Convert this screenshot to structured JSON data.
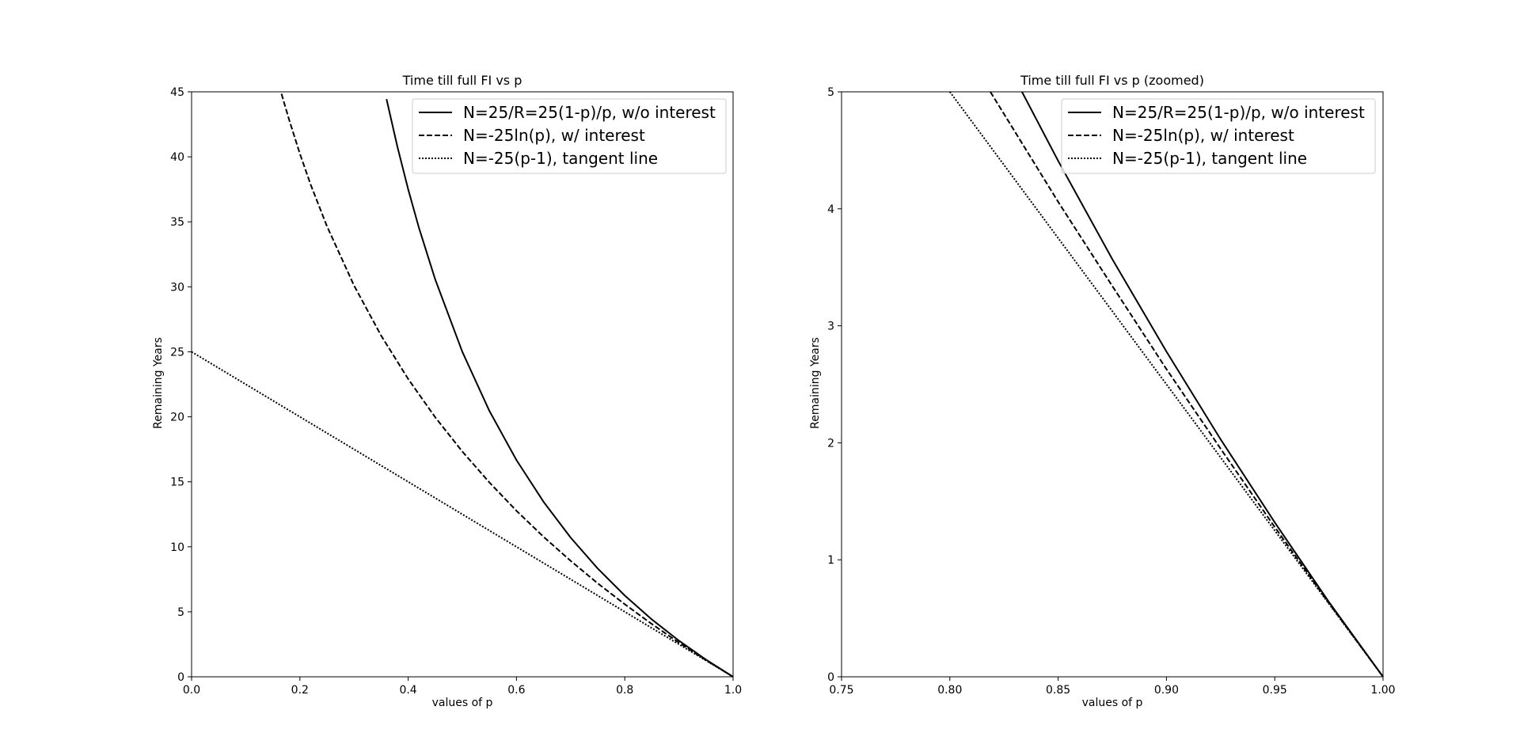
{
  "chart_data": [
    {
      "type": "line",
      "title": "Time till full FI vs p",
      "xlabel": "values of p",
      "ylabel": "Remaining Years",
      "xlim": [
        0,
        1
      ],
      "ylim": [
        0,
        45
      ],
      "xticks": [
        "0.0",
        "0.2",
        "0.4",
        "0.6",
        "0.8",
        "1.0"
      ],
      "yticks": [
        "0",
        "5",
        "10",
        "15",
        "20",
        "25",
        "30",
        "35",
        "40",
        "45"
      ],
      "grid": false,
      "legend": "top-right",
      "series": [
        {
          "name": "N=25/R=25(1-p)/p, w/o interest",
          "style": "solid",
          "x": [
            0.36,
            0.38,
            0.4,
            0.42,
            0.45,
            0.5,
            0.55,
            0.6,
            0.65,
            0.7,
            0.75,
            0.8,
            0.85,
            0.9,
            0.95,
            1.0
          ],
          "y": [
            44.44,
            40.79,
            37.5,
            34.52,
            30.56,
            25.0,
            20.45,
            16.67,
            13.46,
            10.71,
            8.33,
            6.25,
            4.41,
            2.78,
            1.32,
            0.0
          ]
        },
        {
          "name": "N=-25ln(p), w/ interest",
          "style": "dashed",
          "x": [
            0.166,
            0.18,
            0.2,
            0.22,
            0.25,
            0.3,
            0.35,
            0.4,
            0.45,
            0.5,
            0.55,
            0.6,
            0.65,
            0.7,
            0.75,
            0.8,
            0.85,
            0.9,
            0.95,
            1.0
          ],
          "y": [
            44.85,
            42.87,
            40.24,
            37.85,
            34.66,
            30.1,
            26.25,
            22.91,
            19.96,
            17.33,
            14.95,
            12.77,
            10.77,
            8.92,
            7.19,
            5.58,
            4.06,
            2.63,
            1.28,
            0.0
          ]
        },
        {
          "name": "N=-25(p-1), tangent line",
          "style": "dotted",
          "x": [
            0.0,
            0.2,
            0.4,
            0.6,
            0.8,
            1.0
          ],
          "y": [
            25.0,
            20.0,
            15.0,
            10.0,
            5.0,
            0.0
          ]
        }
      ]
    },
    {
      "type": "line",
      "title": "Time till full FI vs p (zoomed)",
      "xlabel": "values of p",
      "ylabel": "Remaining Years",
      "xlim": [
        0.75,
        1.0
      ],
      "ylim": [
        0,
        5
      ],
      "xticks": [
        "0.75",
        "0.80",
        "0.85",
        "0.90",
        "0.95",
        "1.00"
      ],
      "yticks": [
        "0",
        "1",
        "2",
        "3",
        "4",
        "5"
      ],
      "grid": false,
      "legend": "top-right",
      "series": [
        {
          "name": "N=25/R=25(1-p)/p, w/o interest",
          "style": "solid",
          "x": [
            0.8333,
            0.85,
            0.875,
            0.9,
            0.925,
            0.95,
            0.975,
            1.0
          ],
          "y": [
            5.0,
            4.41,
            3.57,
            2.78,
            2.03,
            1.32,
            0.64,
            0.0
          ]
        },
        {
          "name": "N=-25ln(p), w/ interest",
          "style": "dashed",
          "x": [
            0.8187,
            0.85,
            0.875,
            0.9,
            0.925,
            0.95,
            0.975,
            1.0
          ],
          "y": [
            5.0,
            4.06,
            3.34,
            2.63,
            1.95,
            1.28,
            0.63,
            0.0
          ]
        },
        {
          "name": "N=-25(p-1), tangent line",
          "style": "dotted",
          "x": [
            0.8,
            1.0
          ],
          "y": [
            5.0,
            0.0
          ]
        }
      ]
    }
  ]
}
